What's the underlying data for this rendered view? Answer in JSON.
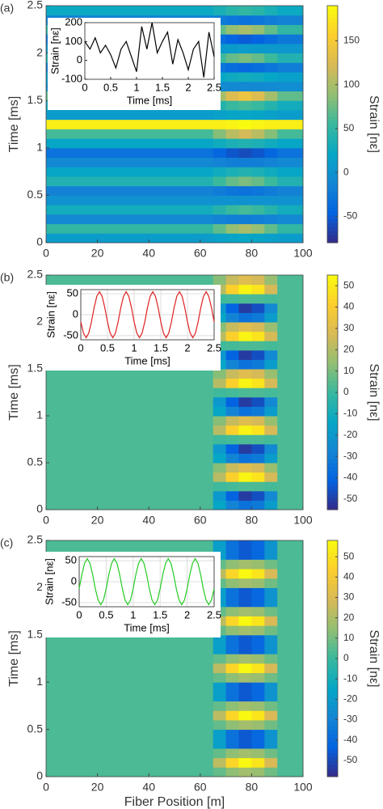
{
  "chart_data": [
    {
      "type": "heatmap",
      "panel_label": "(a)",
      "ylabel": "Time [ms]",
      "colormap": "parula",
      "xbins": [
        0,
        65,
        70,
        75,
        80,
        85,
        90,
        100
      ],
      "ybins": [
        0,
        0.1,
        0.2,
        0.3,
        0.4,
        0.5,
        0.6,
        0.7,
        0.8,
        0.9,
        1,
        1.1,
        1.2,
        1.3,
        1.4,
        1.5,
        1.6,
        1.7,
        1.8,
        1.9,
        2,
        2.1,
        2.2,
        2.3,
        2.4,
        2.5
      ],
      "z": [
        [
          10,
          14,
          18,
          20,
          18,
          14,
          10
        ],
        [
          50,
          70,
          90,
          100,
          90,
          70,
          50
        ],
        [
          -10,
          -14,
          -18,
          -20,
          -18,
          -14,
          -10
        ],
        [
          30,
          42,
          54,
          60,
          54,
          42,
          30
        ],
        [
          0,
          0,
          0,
          0,
          0,
          0,
          0
        ],
        [
          -15,
          -21,
          -27,
          -30,
          -27,
          -21,
          -15
        ],
        [
          40,
          56,
          72,
          80,
          72,
          56,
          40
        ],
        [
          20,
          28,
          36,
          40,
          36,
          28,
          20
        ],
        [
          -10,
          -14,
          -18,
          -20,
          -18,
          -14,
          -10
        ],
        [
          -30,
          -42,
          -54,
          -60,
          -54,
          -42,
          -30
        ],
        [
          20,
          28,
          36,
          40,
          36,
          28,
          20
        ],
        [
          60,
          84,
          108,
          120,
          108,
          84,
          60
        ],
        [
          180,
          180,
          185,
          190,
          185,
          180,
          180
        ],
        [
          10,
          14,
          18,
          20,
          18,
          14,
          10
        ],
        [
          30,
          42,
          54,
          60,
          54,
          42,
          30
        ],
        [
          70,
          98,
          126,
          140,
          126,
          98,
          70
        ],
        [
          -5,
          -7,
          -9,
          -10,
          -9,
          -7,
          -5
        ],
        [
          15,
          21,
          27,
          30,
          27,
          21,
          15
        ],
        [
          -20,
          -28,
          -36,
          -40,
          -36,
          -28,
          -20
        ],
        [
          40,
          56,
          72,
          80,
          72,
          56,
          40
        ],
        [
          5,
          7,
          9,
          10,
          9,
          7,
          5
        ],
        [
          -25,
          -35,
          -45,
          -50,
          -45,
          -35,
          -25
        ],
        [
          50,
          70,
          90,
          100,
          90,
          70,
          50
        ],
        [
          -15,
          -21,
          -27,
          -30,
          -27,
          -21,
          -15
        ],
        [
          25,
          35,
          45,
          50,
          45,
          35,
          25
        ]
      ],
      "xlim": [
        0,
        100
      ],
      "xticks": [
        0,
        20,
        40,
        60,
        80,
        100
      ],
      "ylim": [
        0,
        2.5
      ],
      "yticks": [
        0,
        0.5,
        1,
        1.5,
        2,
        2.5
      ],
      "zlim": [
        -80,
        190
      ],
      "zticks": [
        -50,
        0,
        50,
        100,
        150
      ],
      "colorbar_label": "Strain [nε]",
      "inset": {
        "type": "line",
        "color": "#000000",
        "grid": false,
        "xlabel": "Time [ms]",
        "ylabel": "Strain [nε]",
        "x": [
          0,
          0.1,
          0.2,
          0.3,
          0.4,
          0.5,
          0.6,
          0.7,
          0.8,
          0.9,
          1,
          1.1,
          1.2,
          1.3,
          1.4,
          1.5,
          1.6,
          1.7,
          1.8,
          1.9,
          2,
          2.1,
          2.2,
          2.3,
          2.4,
          2.5
        ],
        "values": [
          100,
          60,
          120,
          40,
          80,
          30,
          -40,
          60,
          100,
          20,
          -60,
          180,
          60,
          200,
          40,
          100,
          150,
          -20,
          110,
          40,
          -50,
          60,
          100,
          -90,
          150,
          20
        ],
        "xlim": [
          0,
          2.5
        ],
        "xticks": [
          0,
          0.5,
          1,
          1.5,
          2,
          2.5
        ],
        "ylim": [
          -100,
          200
        ],
        "yticks": [
          -100,
          0,
          100,
          200
        ]
      }
    },
    {
      "type": "heatmap",
      "panel_label": "(b)",
      "ylabel": "Time [ms]",
      "colormap": "parula",
      "xbins": [
        0,
        65,
        70,
        75,
        80,
        85,
        90,
        100
      ],
      "ybins": [
        0,
        0.1,
        0.2,
        0.3,
        0.4,
        0.5,
        0.6,
        0.7,
        0.8,
        0.9,
        1,
        1.1,
        1.2,
        1.3,
        1.4,
        1.5,
        1.6,
        1.7,
        1.8,
        1.9,
        2,
        2.1,
        2.2,
        2.3,
        2.4,
        2.5
      ],
      "z": [
        [
          3,
          -14,
          -28,
          -35,
          -32,
          -18,
          3
        ],
        [
          3,
          -20,
          -41,
          -51,
          -46,
          -26,
          3
        ],
        [
          3,
          1,
          2,
          3,
          3,
          2,
          3
        ],
        [
          3,
          21,
          42,
          53,
          48,
          27,
          3
        ],
        [
          3,
          12,
          24,
          30,
          27,
          15,
          3
        ],
        [
          3,
          -14,
          -28,
          -35,
          -32,
          -18,
          3
        ],
        [
          3,
          -20,
          -41,
          -51,
          -46,
          -26,
          3
        ],
        [
          3,
          1,
          2,
          3,
          3,
          2,
          3
        ],
        [
          3,
          21,
          42,
          53,
          48,
          27,
          3
        ],
        [
          3,
          12,
          24,
          30,
          27,
          15,
          3
        ],
        [
          3,
          -14,
          -28,
          -35,
          -32,
          -18,
          3
        ],
        [
          3,
          -20,
          -41,
          -51,
          -46,
          -26,
          3
        ],
        [
          3,
          1,
          2,
          3,
          3,
          2,
          3
        ],
        [
          3,
          21,
          42,
          53,
          48,
          27,
          3
        ],
        [
          3,
          12,
          24,
          30,
          27,
          15,
          3
        ],
        [
          3,
          -14,
          -28,
          -35,
          -32,
          -18,
          3
        ],
        [
          3,
          -20,
          -41,
          -51,
          -46,
          -26,
          3
        ],
        [
          3,
          1,
          2,
          3,
          3,
          2,
          3
        ],
        [
          3,
          21,
          42,
          53,
          48,
          27,
          3
        ],
        [
          3,
          12,
          24,
          30,
          27,
          15,
          3
        ],
        [
          3,
          -14,
          -28,
          -35,
          -32,
          -18,
          3
        ],
        [
          3,
          -20,
          -41,
          -51,
          -46,
          -26,
          3
        ],
        [
          3,
          1,
          2,
          3,
          3,
          2,
          3
        ],
        [
          3,
          21,
          42,
          53,
          48,
          27,
          3
        ],
        [
          3,
          12,
          24,
          30,
          27,
          15,
          3
        ]
      ],
      "xlim": [
        0,
        100
      ],
      "xticks": [
        0,
        20,
        40,
        60,
        80,
        100
      ],
      "ylim": [
        0,
        2.5
      ],
      "yticks": [
        0,
        0.5,
        1,
        1.5,
        2,
        2.5
      ],
      "zlim": [
        -55,
        55
      ],
      "zticks": [
        -50,
        -40,
        -30,
        -20,
        -10,
        0,
        10,
        20,
        30,
        40,
        50
      ],
      "colorbar_label": "Strain [nε]",
      "inset": {
        "type": "line",
        "color": "#e02020",
        "grid": true,
        "xlabel": "Time [ms]",
        "ylabel": "Strain [nε]",
        "x": [
          0,
          0.05,
          0.1,
          0.15,
          0.2,
          0.25,
          0.3,
          0.35,
          0.4,
          0.45,
          0.5,
          0.55,
          0.6,
          0.65,
          0.7,
          0.75,
          0.8,
          0.85,
          0.9,
          0.95,
          1,
          1.05,
          1.1,
          1.15,
          1.2,
          1.25,
          1.3,
          1.35,
          1.4,
          1.45,
          1.5,
          1.55,
          1.6,
          1.65,
          1.7,
          1.75,
          1.8,
          1.85,
          1.9,
          1.95,
          2,
          2.05,
          2.1,
          2.15,
          2.2,
          2.25,
          2.3,
          2.35,
          2.4,
          2.45,
          2.5
        ],
        "values": [
          -17,
          -44,
          -55,
          -44,
          -17,
          17,
          44,
          55,
          44,
          17,
          -17,
          -44,
          -55,
          -44,
          -17,
          17,
          44,
          55,
          44,
          17,
          -17,
          -44,
          -55,
          -44,
          -17,
          17,
          44,
          55,
          44,
          17,
          -17,
          -44,
          -55,
          -44,
          -17,
          17,
          44,
          55,
          44,
          17,
          -17,
          -44,
          -55,
          -44,
          -17,
          17,
          44,
          55,
          44,
          17,
          -17
        ],
        "xlim": [
          0,
          2.5
        ],
        "xticks": [
          0,
          0.5,
          1,
          1.5,
          2,
          2.5
        ],
        "ylim": [
          -60,
          60
        ],
        "yticks": [
          -50,
          0,
          50
        ]
      }
    },
    {
      "type": "heatmap",
      "panel_label": "(c)",
      "ylabel": "Time [ms]",
      "xlabel": "Fiber Position [m]",
      "colormap": "parula",
      "xbins": [
        0,
        65,
        70,
        75,
        80,
        85,
        90,
        100
      ],
      "ybins": [
        0,
        0.1,
        0.2,
        0.3,
        0.4,
        0.5,
        0.6,
        0.7,
        0.8,
        0.9,
        1,
        1.1,
        1.2,
        1.3,
        1.4,
        1.5,
        1.6,
        1.7,
        1.8,
        1.9,
        2,
        2.1,
        2.2,
        2.3,
        2.4,
        2.5
      ],
      "z": [
        [
          3,
          7,
          14,
          18,
          16,
          9,
          3
        ],
        [
          3,
          23,
          46,
          57,
          51,
          29,
          3
        ],
        [
          3,
          7,
          14,
          18,
          16,
          9,
          3
        ],
        [
          3,
          -18,
          -37,
          -46,
          -41,
          -23,
          3
        ],
        [
          3,
          -18,
          -37,
          -46,
          -41,
          -23,
          3
        ],
        [
          3,
          7,
          14,
          18,
          16,
          9,
          3
        ],
        [
          3,
          23,
          46,
          57,
          51,
          29,
          3
        ],
        [
          3,
          7,
          14,
          18,
          16,
          9,
          3
        ],
        [
          3,
          -18,
          -37,
          -46,
          -41,
          -23,
          3
        ],
        [
          3,
          -18,
          -37,
          -46,
          -41,
          -23,
          3
        ],
        [
          3,
          7,
          14,
          18,
          16,
          9,
          3
        ],
        [
          3,
          23,
          46,
          57,
          51,
          29,
          3
        ],
        [
          3,
          7,
          14,
          18,
          16,
          9,
          3
        ],
        [
          3,
          -18,
          -37,
          -46,
          -41,
          -23,
          3
        ],
        [
          3,
          -18,
          -37,
          -46,
          -41,
          -23,
          3
        ],
        [
          3,
          7,
          14,
          18,
          16,
          9,
          3
        ],
        [
          3,
          23,
          46,
          57,
          51,
          29,
          3
        ],
        [
          3,
          7,
          14,
          18,
          16,
          9,
          3
        ],
        [
          3,
          -18,
          -37,
          -46,
          -41,
          -23,
          3
        ],
        [
          3,
          -18,
          -37,
          -46,
          -41,
          -23,
          3
        ],
        [
          3,
          7,
          14,
          18,
          16,
          9,
          3
        ],
        [
          3,
          23,
          46,
          57,
          51,
          29,
          3
        ],
        [
          3,
          7,
          14,
          18,
          16,
          9,
          3
        ],
        [
          3,
          -18,
          -37,
          -46,
          -41,
          -23,
          3
        ],
        [
          3,
          -18,
          -37,
          -46,
          -41,
          -23,
          3
        ]
      ],
      "xlim": [
        0,
        100
      ],
      "xticks": [
        0,
        20,
        40,
        60,
        80,
        100
      ],
      "ylim": [
        0,
        2.5
      ],
      "yticks": [
        0,
        0.5,
        1,
        1.5,
        2,
        2.5
      ],
      "zlim": [
        -58,
        58
      ],
      "zticks": [
        -50,
        -40,
        -30,
        -20,
        -10,
        0,
        10,
        20,
        30,
        40,
        50
      ],
      "colorbar_label": "Strain [nε]",
      "inset": {
        "type": "line",
        "color": "#22cc22",
        "grid": true,
        "xlabel": "Time [ms]",
        "ylabel": "Strain [nε]",
        "x": [
          0,
          0.05,
          0.1,
          0.15,
          0.2,
          0.25,
          0.3,
          0.35,
          0.4,
          0.45,
          0.5,
          0.55,
          0.6,
          0.65,
          0.7,
          0.75,
          0.8,
          0.85,
          0.9,
          0.95,
          1,
          1.05,
          1.1,
          1.15,
          1.2,
          1.25,
          1.3,
          1.35,
          1.4,
          1.45,
          1.5,
          1.55,
          1.6,
          1.65,
          1.7,
          1.75,
          1.8,
          1.85,
          1.9,
          1.95,
          2,
          2.05,
          2.1,
          2.15,
          2.2,
          2.25,
          2.3,
          2.35,
          2.4,
          2.45,
          2.5
        ],
        "values": [
          -17,
          17,
          44,
          55,
          44,
          17,
          -17,
          -44,
          -55,
          -44,
          -17,
          17,
          44,
          55,
          44,
          17,
          -17,
          -44,
          -55,
          -44,
          -17,
          17,
          44,
          55,
          44,
          17,
          -17,
          -44,
          -55,
          -44,
          -17,
          17,
          44,
          55,
          44,
          17,
          -17,
          -44,
          -55,
          -44,
          -17,
          17,
          44,
          55,
          44,
          17,
          -17,
          -44,
          -55,
          -44,
          -17
        ],
        "xlim": [
          0,
          2.5
        ],
        "xticks": [
          0,
          0.5,
          1,
          1.5,
          2,
          2.5
        ],
        "ylim": [
          -60,
          60
        ],
        "yticks": [
          -50,
          0,
          50
        ]
      }
    }
  ]
}
